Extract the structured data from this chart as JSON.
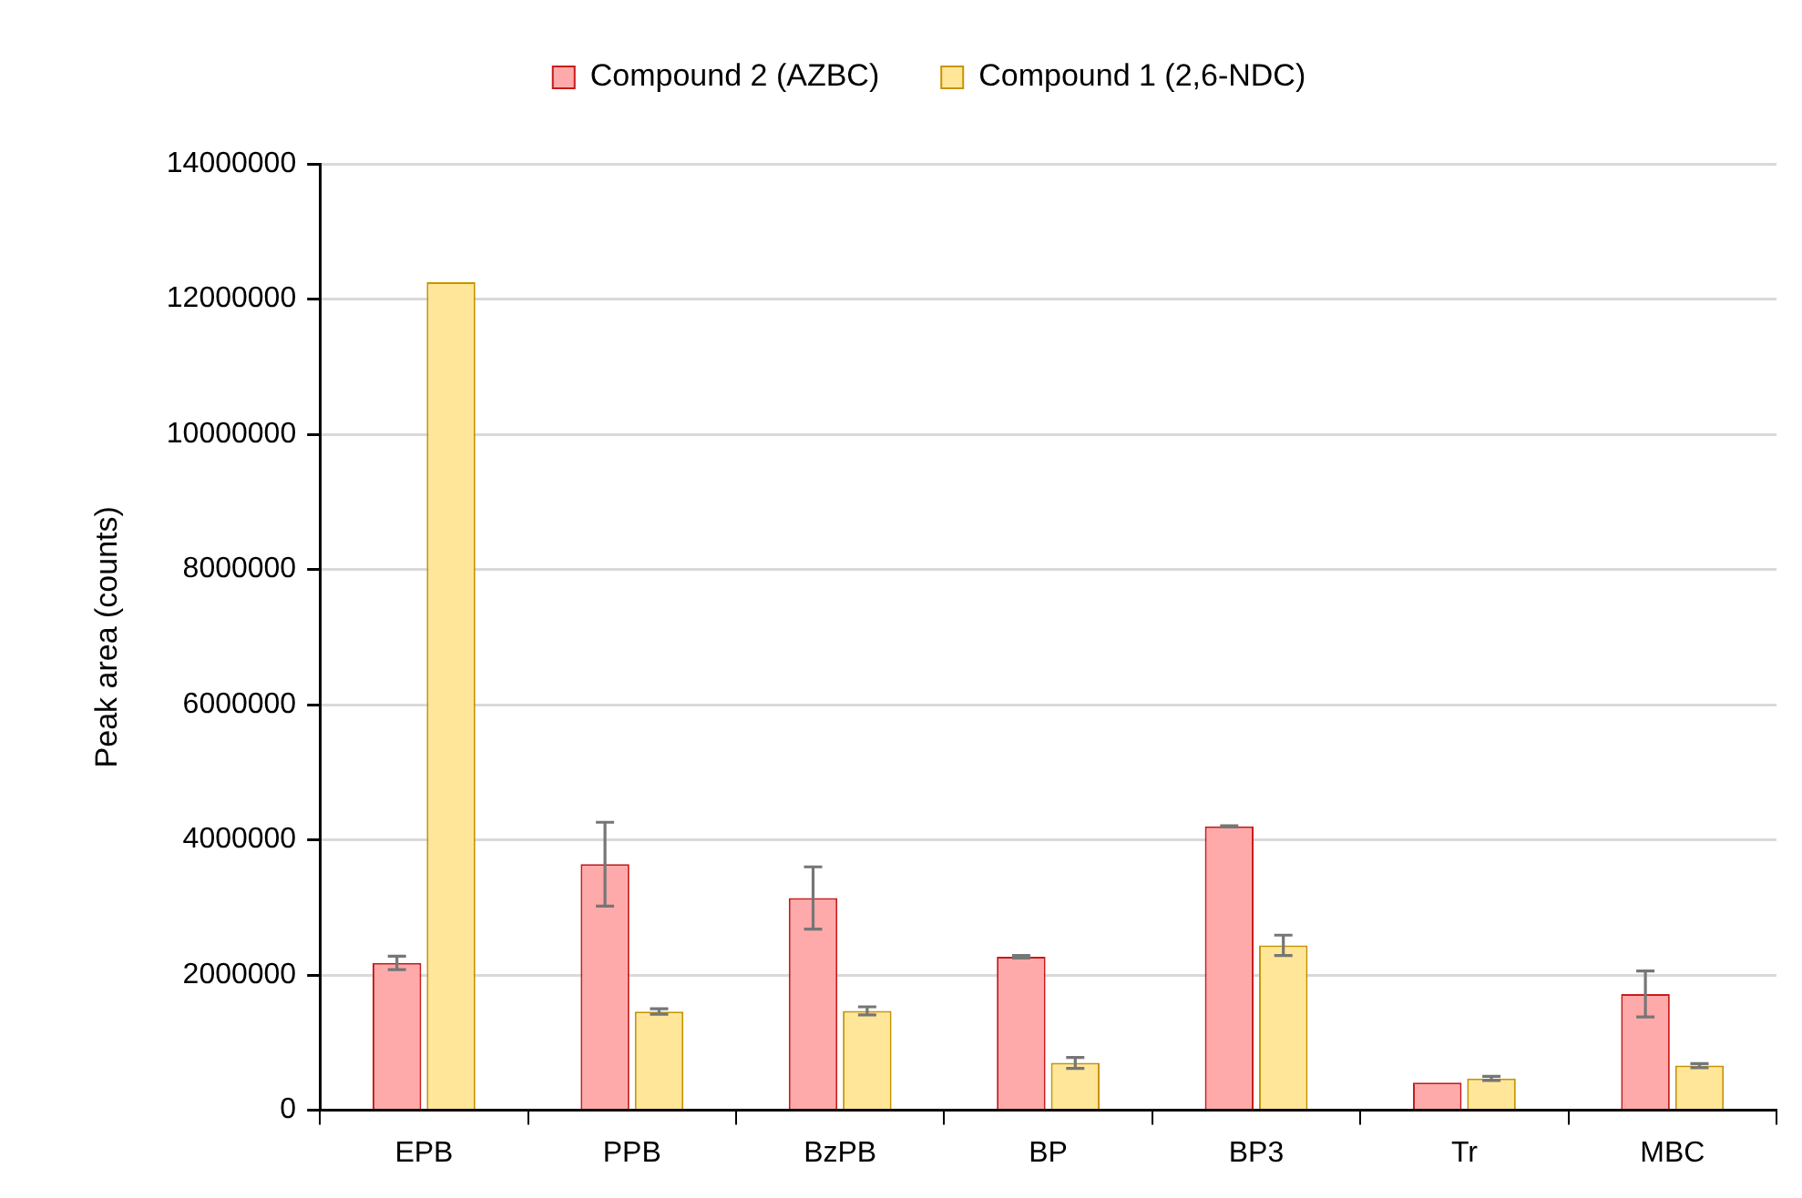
{
  "chart_data": {
    "type": "bar",
    "ylabel": "Peak area (counts)",
    "categories": [
      "EPB",
      "PPB",
      "BzPB",
      "BP",
      "BP3",
      "Tr",
      "MBC"
    ],
    "series": [
      {
        "name": "Compound 2 (AZBC)",
        "color": "#ffaaaa",
        "values": [
          2180000,
          3640000,
          3140000,
          2270000,
          4200000,
          410000,
          1720000
        ],
        "errors": [
          100000,
          620000,
          460000,
          20000,
          10000,
          null,
          340000
        ]
      },
      {
        "name": "Compound 1 (2,6-NDC)",
        "color": "#ffe699",
        "values": [
          12250000,
          1460000,
          1470000,
          700000,
          2440000,
          470000,
          660000
        ],
        "errors": [
          null,
          40000,
          60000,
          80000,
          150000,
          30000,
          30000
        ]
      }
    ],
    "ylim": [
      0,
      14000000
    ],
    "yticks": [
      0,
      2000000,
      4000000,
      6000000,
      8000000,
      10000000,
      12000000,
      14000000
    ],
    "grid": "y",
    "legend": "top"
  }
}
